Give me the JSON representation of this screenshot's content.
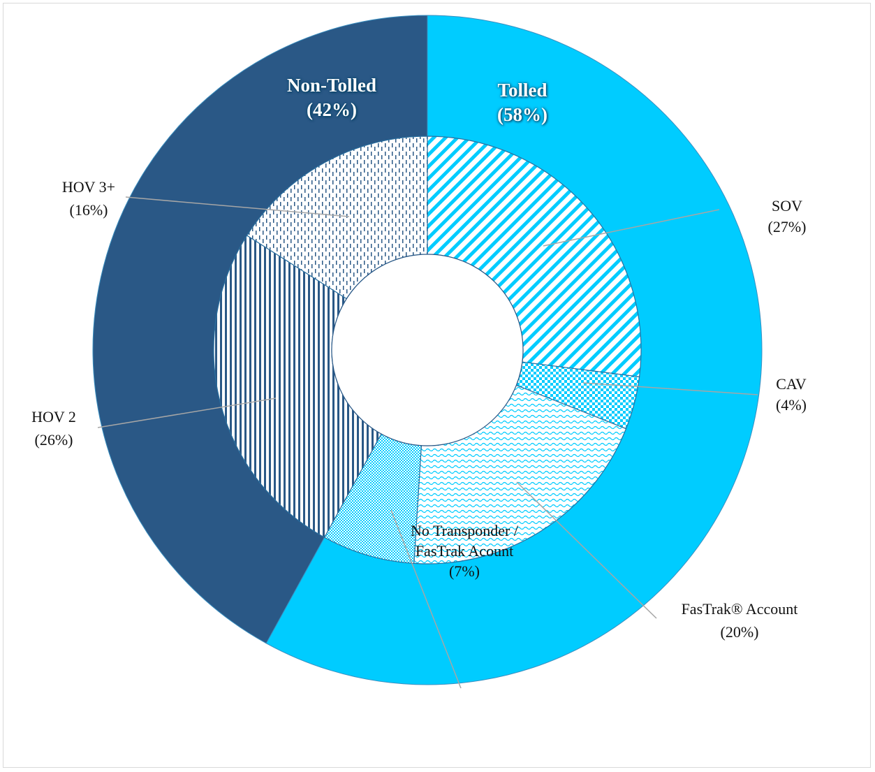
{
  "chart_data": {
    "type": "donut",
    "series": [
      {
        "categories": [
          "Tolled",
          "Non-Tolled"
        ],
        "values": [
          58,
          42
        ],
        "value_labels": [
          "(58%)",
          "(42%)"
        ],
        "colors": [
          "#00ccff",
          "#2a5886"
        ]
      },
      {
        "categories": [
          "SOV",
          "CAV",
          "FasTrak® Account",
          "No Transponder / FasTrak Acount",
          "HOV 2",
          "HOV 3+"
        ],
        "values": [
          27,
          4,
          20,
          7,
          26,
          16
        ],
        "value_labels": [
          "(27%)",
          "(4%)",
          "(20%)",
          "(7%)",
          "(26%)",
          "(16%)"
        ],
        "colors": [
          "#00ccff",
          "#00ccff",
          "#00ccff",
          "#00ccff",
          "#2a5886",
          "#2a5886"
        ]
      }
    ]
  }
}
